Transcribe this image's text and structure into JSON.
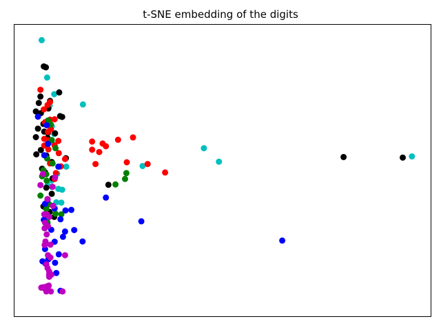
{
  "chart_data": {
    "type": "scatter",
    "title": "t-SNE embedding of the digits",
    "xlabel": "",
    "ylabel": "",
    "xlim": [
      0.0,
      1.0
    ],
    "ylim": [
      0.0,
      1.0
    ],
    "axes_ticks_visible": false,
    "grid": false,
    "legend": "none",
    "colors": {
      "blue": "#0000ff",
      "green": "#008000",
      "red": "#ff0000",
      "cyan": "#00bfbf",
      "magenta": "#bf00bf",
      "black": "#000000"
    },
    "series": [
      {
        "color_key": "cyan",
        "points": [
          [
            0.067,
            0.945
          ],
          [
            0.08,
            0.817
          ],
          [
            0.097,
            0.76
          ],
          [
            0.086,
            0.721
          ],
          [
            0.097,
            0.624
          ],
          [
            0.166,
            0.725
          ],
          [
            0.091,
            0.65
          ],
          [
            0.091,
            0.595
          ],
          [
            0.111,
            0.512
          ],
          [
            0.104,
            0.488
          ],
          [
            0.091,
            0.465
          ],
          [
            0.126,
            0.512
          ],
          [
            0.091,
            0.443
          ],
          [
            0.116,
            0.433
          ],
          [
            0.107,
            0.436
          ],
          [
            0.102,
            0.39
          ],
          [
            0.114,
            0.389
          ],
          [
            0.081,
            0.448
          ],
          [
            0.309,
            0.514
          ],
          [
            0.456,
            0.575
          ],
          [
            0.492,
            0.529
          ],
          [
            0.955,
            0.547
          ]
        ]
      },
      {
        "color_key": "black",
        "points": [
          [
            0.072,
            0.855
          ],
          [
            0.077,
            0.852
          ],
          [
            0.109,
            0.766
          ],
          [
            0.064,
            0.752
          ],
          [
            0.06,
            0.73
          ],
          [
            0.087,
            0.737
          ],
          [
            0.053,
            0.701
          ],
          [
            0.065,
            0.695
          ],
          [
            0.083,
            0.711
          ],
          [
            0.111,
            0.685
          ],
          [
            0.116,
            0.682
          ],
          [
            0.071,
            0.658
          ],
          [
            0.058,
            0.642
          ],
          [
            0.073,
            0.632
          ],
          [
            0.082,
            0.628
          ],
          [
            0.099,
            0.626
          ],
          [
            0.081,
            0.61
          ],
          [
            0.053,
            0.613
          ],
          [
            0.083,
            0.596
          ],
          [
            0.065,
            0.569
          ],
          [
            0.078,
            0.55
          ],
          [
            0.054,
            0.554
          ],
          [
            0.125,
            0.541
          ],
          [
            0.091,
            0.528
          ],
          [
            0.068,
            0.505
          ],
          [
            0.075,
            0.493
          ],
          [
            0.093,
            0.472
          ],
          [
            0.078,
            0.44
          ],
          [
            0.091,
            0.419
          ],
          [
            0.071,
            0.376
          ],
          [
            0.086,
            0.357
          ],
          [
            0.097,
            0.34
          ],
          [
            0.08,
            0.313
          ],
          [
            0.227,
            0.45
          ],
          [
            0.791,
            0.545
          ],
          [
            0.933,
            0.543
          ]
        ]
      },
      {
        "color_key": "red",
        "points": [
          [
            0.064,
            0.775
          ],
          [
            0.087,
            0.733
          ],
          [
            0.081,
            0.723
          ],
          [
            0.072,
            0.708
          ],
          [
            0.087,
            0.673
          ],
          [
            0.075,
            0.664
          ],
          [
            0.098,
            0.674
          ],
          [
            0.089,
            0.64
          ],
          [
            0.082,
            0.631
          ],
          [
            0.073,
            0.607
          ],
          [
            0.082,
            0.602
          ],
          [
            0.107,
            0.6
          ],
          [
            0.073,
            0.584
          ],
          [
            0.083,
            0.571
          ],
          [
            0.098,
            0.585
          ],
          [
            0.108,
            0.558
          ],
          [
            0.123,
            0.538
          ],
          [
            0.113,
            0.513
          ],
          [
            0.101,
            0.49
          ],
          [
            0.087,
            0.523
          ],
          [
            0.098,
            0.47
          ],
          [
            0.188,
            0.598
          ],
          [
            0.213,
            0.591
          ],
          [
            0.221,
            0.582
          ],
          [
            0.188,
            0.57
          ],
          [
            0.205,
            0.562
          ],
          [
            0.196,
            0.521
          ],
          [
            0.286,
            0.612
          ],
          [
            0.25,
            0.604
          ],
          [
            0.321,
            0.521
          ],
          [
            0.271,
            0.527
          ],
          [
            0.363,
            0.492
          ]
        ]
      },
      {
        "color_key": "green",
        "points": [
          [
            0.082,
            0.67
          ],
          [
            0.089,
            0.656
          ],
          [
            0.091,
            0.603
          ],
          [
            0.1,
            0.575
          ],
          [
            0.08,
            0.54
          ],
          [
            0.093,
            0.523
          ],
          [
            0.071,
            0.5
          ],
          [
            0.078,
            0.486
          ],
          [
            0.068,
            0.479
          ],
          [
            0.079,
            0.464
          ],
          [
            0.064,
            0.413
          ],
          [
            0.081,
            0.401
          ],
          [
            0.085,
            0.383
          ],
          [
            0.078,
            0.367
          ],
          [
            0.1,
            0.351
          ],
          [
            0.08,
            0.333
          ],
          [
            0.081,
            0.32
          ],
          [
            0.114,
            0.349
          ],
          [
            0.27,
            0.49
          ],
          [
            0.244,
            0.451
          ],
          [
            0.267,
            0.47
          ]
        ]
      },
      {
        "color_key": "blue",
        "points": [
          [
            0.058,
            0.683
          ],
          [
            0.079,
            0.654
          ],
          [
            0.082,
            0.59
          ],
          [
            0.073,
            0.551
          ],
          [
            0.107,
            0.512
          ],
          [
            0.081,
            0.398
          ],
          [
            0.075,
            0.385
          ],
          [
            0.098,
            0.369
          ],
          [
            0.072,
            0.33
          ],
          [
            0.112,
            0.332
          ],
          [
            0.08,
            0.31
          ],
          [
            0.09,
            0.296
          ],
          [
            0.123,
            0.29
          ],
          [
            0.124,
            0.362
          ],
          [
            0.138,
            0.364
          ],
          [
            0.118,
            0.272
          ],
          [
            0.145,
            0.295
          ],
          [
            0.098,
            0.255
          ],
          [
            0.165,
            0.256
          ],
          [
            0.075,
            0.23
          ],
          [
            0.108,
            0.212
          ],
          [
            0.083,
            0.195
          ],
          [
            0.069,
            0.188
          ],
          [
            0.099,
            0.183
          ],
          [
            0.076,
            0.18
          ],
          [
            0.102,
            0.148
          ],
          [
            0.221,
            0.406
          ],
          [
            0.306,
            0.325
          ],
          [
            0.644,
            0.259
          ],
          [
            0.112,
            0.087
          ]
        ]
      },
      {
        "color_key": "magenta",
        "points": [
          [
            0.064,
            0.449
          ],
          [
            0.07,
            0.487
          ],
          [
            0.099,
            0.475
          ],
          [
            0.093,
            0.443
          ],
          [
            0.081,
            0.401
          ],
          [
            0.094,
            0.378
          ],
          [
            0.079,
            0.349
          ],
          [
            0.073,
            0.349
          ],
          [
            0.085,
            0.34
          ],
          [
            0.075,
            0.32
          ],
          [
            0.082,
            0.308
          ],
          [
            0.074,
            0.301
          ],
          [
            0.079,
            0.28
          ],
          [
            0.076,
            0.256
          ],
          [
            0.074,
            0.244
          ],
          [
            0.088,
            0.245
          ],
          [
            0.123,
            0.209
          ],
          [
            0.082,
            0.209
          ],
          [
            0.078,
            0.178
          ],
          [
            0.081,
            0.165
          ],
          [
            0.085,
            0.153
          ],
          [
            0.085,
            0.144
          ],
          [
            0.084,
            0.105
          ],
          [
            0.08,
            0.099
          ],
          [
            0.07,
            0.099
          ],
          [
            0.078,
            0.085
          ],
          [
            0.117,
            0.085
          ],
          [
            0.089,
            0.085
          ],
          [
            0.085,
            0.135
          ],
          [
            0.09,
            0.142
          ],
          [
            0.066,
            0.098
          ],
          [
            0.079,
            0.102
          ],
          [
            0.088,
            0.201
          ],
          [
            0.073,
            0.099
          ],
          [
            0.074,
            0.095
          ],
          [
            0.072,
            0.098
          ]
        ]
      }
    ]
  }
}
